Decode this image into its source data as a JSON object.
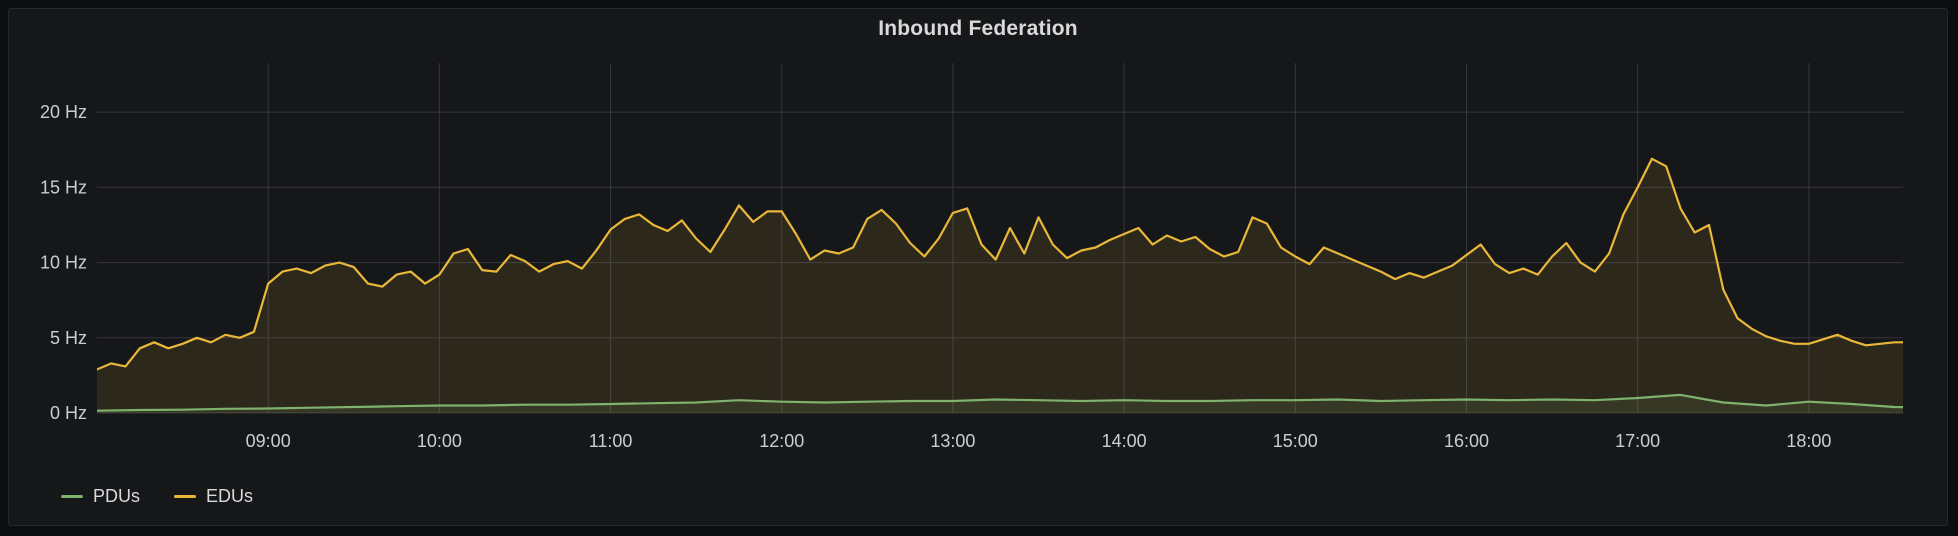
{
  "panel": {
    "title": "Inbound Federation"
  },
  "colors": {
    "page_background": "#0c0d0f",
    "panel_background": "#161719",
    "panel_border": "#26282d",
    "grid": "#34373c",
    "tick_text": "#c9cdd4",
    "title_text": "#d8d9da",
    "legend_text": "#d8d9da",
    "pdus": "#7EB26D",
    "edus": "#EAB839"
  },
  "chart_data": {
    "type": "area",
    "title": "Inbound Federation",
    "grid": true,
    "fill_opacity": 0.11,
    "x_axis": {
      "start_hour": 8,
      "end_hour": 18.55,
      "tick_hours": [
        9,
        10,
        11,
        12,
        13,
        14,
        15,
        16,
        17,
        18
      ],
      "tick_labels": [
        "09:00",
        "10:00",
        "11:00",
        "12:00",
        "13:00",
        "14:00",
        "15:00",
        "16:00",
        "17:00",
        "18:00"
      ]
    },
    "y_axis": {
      "unit": "Hz",
      "min": 0,
      "max": 23,
      "ticks": [
        0,
        5,
        10,
        15,
        20
      ],
      "tick_labels": [
        "0 Hz",
        "5 Hz",
        "10 Hz",
        "15 Hz",
        "20 Hz"
      ]
    },
    "legend": {
      "position": "bottom-left",
      "entries": [
        "PDUs",
        "EDUs"
      ]
    },
    "series": [
      {
        "name": "EDUs",
        "color": "#EAB839",
        "start_hour": 8,
        "step_minutes": 5,
        "values": [
          2.9,
          3.3,
          3.1,
          4.3,
          4.7,
          4.3,
          4.6,
          5.0,
          4.7,
          5.2,
          5.0,
          5.4,
          8.6,
          9.4,
          9.6,
          9.3,
          9.8,
          10.0,
          9.7,
          8.6,
          8.4,
          9.2,
          9.4,
          8.6,
          9.2,
          10.6,
          10.9,
          9.5,
          9.4,
          10.5,
          10.1,
          9.4,
          9.9,
          10.1,
          9.6,
          10.8,
          12.2,
          12.9,
          13.2,
          12.5,
          12.1,
          12.8,
          11.6,
          10.7,
          12.2,
          13.8,
          12.7,
          13.4,
          13.4,
          11.9,
          10.2,
          10.8,
          10.6,
          11.0,
          12.9,
          13.5,
          12.6,
          11.3,
          10.4,
          11.6,
          13.3,
          13.6,
          11.2,
          10.2,
          12.3,
          10.6,
          13.0,
          11.2,
          10.3,
          10.8,
          11.0,
          11.5,
          11.9,
          12.3,
          11.2,
          11.8,
          11.4,
          11.7,
          10.9,
          10.4,
          10.7,
          13.0,
          12.6,
          11.0,
          10.4,
          9.9,
          11.0,
          10.6,
          10.2,
          9.8,
          9.4,
          8.9,
          9.3,
          9.0,
          9.4,
          9.8,
          10.5,
          11.2,
          9.9,
          9.3,
          9.6,
          9.2,
          10.4,
          11.3,
          10.0,
          9.4,
          10.6,
          13.2,
          15.0,
          16.9,
          16.4,
          13.6,
          12.0,
          12.5,
          8.2,
          6.3,
          5.6,
          5.1,
          4.8,
          4.6,
          4.6,
          4.9,
          5.2,
          4.8,
          4.5,
          4.6,
          4.7,
          4.7
        ]
      },
      {
        "name": "PDUs",
        "color": "#7EB26D",
        "start_hour": 8,
        "step_minutes": 15,
        "values": [
          0.15,
          0.2,
          0.22,
          0.28,
          0.3,
          0.35,
          0.4,
          0.45,
          0.5,
          0.5,
          0.55,
          0.55,
          0.6,
          0.65,
          0.7,
          0.85,
          0.75,
          0.7,
          0.75,
          0.8,
          0.8,
          0.9,
          0.85,
          0.8,
          0.85,
          0.8,
          0.8,
          0.85,
          0.85,
          0.9,
          0.8,
          0.85,
          0.9,
          0.85,
          0.9,
          0.85,
          1.0,
          1.2,
          0.7,
          0.5,
          0.75,
          0.6,
          0.4,
          0.35
        ]
      }
    ]
  }
}
